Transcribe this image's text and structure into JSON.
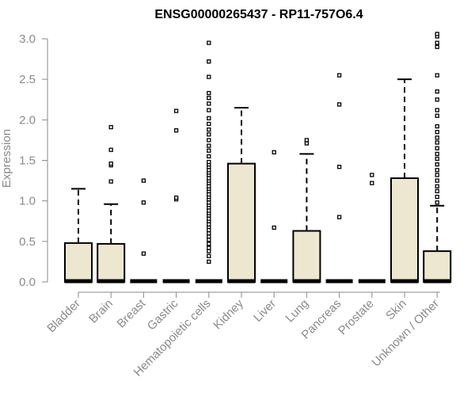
{
  "chart_data": {
    "type": "box",
    "title": "ENSG00000265437 - RP11-757O6.4",
    "xlabel": "",
    "ylabel": "Expression",
    "ylim": [
      0,
      3.0
    ],
    "yticks": [
      "0.0",
      "0.5",
      "1.0",
      "1.5",
      "2.0",
      "2.5",
      "3.0"
    ],
    "box_fill": "#ede7cf",
    "categories": [
      "Bladder",
      "Brain",
      "Breast",
      "Gastric",
      "Hematopoietic cells",
      "Kidney",
      "Liver",
      "Lung",
      "Pancreas",
      "Prostate",
      "Skin",
      "Unknown / Other"
    ],
    "boxes": [
      {
        "name": "Bladder",
        "q1": 0,
        "median": 0,
        "q3": 0.48,
        "whisker_low": 0,
        "whisker_high": 1.15,
        "outliers": []
      },
      {
        "name": "Brain",
        "q1": 0,
        "median": 0,
        "q3": 0.47,
        "whisker_low": 0,
        "whisker_high": 0.96,
        "outliers": [
          1.24,
          1.44,
          1.46,
          1.63,
          1.91
        ]
      },
      {
        "name": "Breast",
        "q1": 0,
        "median": 0,
        "q3": 0,
        "whisker_low": 0,
        "whisker_high": 0,
        "outliers": [
          0.35,
          0.98,
          1.25
        ]
      },
      {
        "name": "Gastric",
        "q1": 0,
        "median": 0,
        "q3": 0,
        "whisker_low": 0,
        "whisker_high": 0,
        "outliers": [
          1.02,
          1.04,
          1.87,
          2.11
        ]
      },
      {
        "name": "Hematopoietic cells",
        "q1": 0,
        "median": 0,
        "q3": 0,
        "whisker_low": 0,
        "whisker_high": 0,
        "outliers": [
          0.25,
          0.32,
          0.38,
          0.42,
          0.47,
          0.52,
          0.56,
          0.6,
          0.64,
          0.68,
          0.71,
          0.75,
          0.78,
          0.82,
          0.85,
          0.88,
          0.92,
          0.95,
          0.98,
          1.02,
          1.05,
          1.08,
          1.12,
          1.15,
          1.18,
          1.22,
          1.25,
          1.28,
          1.32,
          1.35,
          1.38,
          1.42,
          1.45,
          1.48,
          1.55,
          1.62,
          1.68,
          1.75,
          1.82,
          1.88,
          1.95,
          2.02,
          2.12,
          2.2,
          2.27,
          2.33,
          2.53,
          2.72,
          2.95
        ]
      },
      {
        "name": "Kidney",
        "q1": 0,
        "median": 0,
        "q3": 1.46,
        "whisker_low": 0,
        "whisker_high": 2.15,
        "outliers": []
      },
      {
        "name": "Liver",
        "q1": 0,
        "median": 0,
        "q3": 0,
        "whisker_low": 0,
        "whisker_high": 0,
        "outliers": [
          0.67,
          1.6
        ]
      },
      {
        "name": "Lung",
        "q1": 0,
        "median": 0,
        "q3": 0.63,
        "whisker_low": 0,
        "whisker_high": 1.58,
        "outliers": [
          1.71,
          1.75
        ]
      },
      {
        "name": "Pancreas",
        "q1": 0,
        "median": 0,
        "q3": 0,
        "whisker_low": 0,
        "whisker_high": 0,
        "outliers": [
          0.8,
          1.42,
          2.19,
          2.55
        ]
      },
      {
        "name": "Prostate",
        "q1": 0,
        "median": 0,
        "q3": 0,
        "whisker_low": 0,
        "whisker_high": 0,
        "outliers": [
          1.22,
          1.32
        ]
      },
      {
        "name": "Skin",
        "q1": 0,
        "median": 0,
        "q3": 1.28,
        "whisker_low": 0,
        "whisker_high": 2.5,
        "outliers": []
      },
      {
        "name": "Unknown / Other",
        "q1": 0,
        "median": 0,
        "q3": 0.38,
        "whisker_low": 0,
        "whisker_high": 0.94,
        "outliers": [
          0.98,
          1.05,
          1.12,
          1.18,
          1.25,
          1.32,
          1.38,
          1.45,
          1.52,
          1.58,
          1.65,
          1.72,
          1.78,
          1.85,
          1.92,
          2.05,
          2.12,
          2.25,
          2.35,
          2.55,
          2.9,
          2.95,
          3.03,
          3.06
        ]
      }
    ]
  }
}
